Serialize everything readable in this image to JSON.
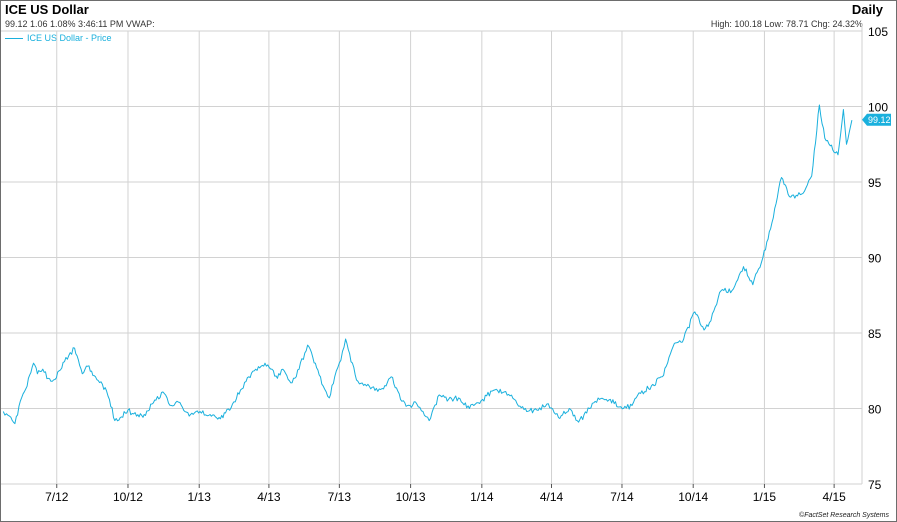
{
  "header": {
    "title": "ICE US Dollar",
    "frequency": "Daily",
    "quote_line": "99.12 1.06 1.08% 3:46:11 PM VWAP:",
    "stats_line": "High: 100.18 Low: 78.71 Chg: 24.32%",
    "legend_label": "ICE US Dollar - Price"
  },
  "footer": {
    "credit": "©FactSet Research Systems"
  },
  "chart_data": {
    "type": "line",
    "title": "ICE US Dollar",
    "xlabel": "",
    "ylabel": "",
    "x_tick_labels": [
      "7/12",
      "10/12",
      "1/13",
      "4/13",
      "7/13",
      "10/13",
      "1/14",
      "4/14",
      "7/14",
      "10/14",
      "1/15",
      "4/15"
    ],
    "y_tick_labels": [
      "75",
      "80",
      "85",
      "90",
      "95",
      "100",
      "105"
    ],
    "ylim": [
      75,
      105
    ],
    "xlim": [
      "2012-04-20",
      "2015-05-07"
    ],
    "grid": true,
    "legend_position": "top-left",
    "y_axis_side": "right",
    "last_value_label": "99.12",
    "series": [
      {
        "name": "ICE US Dollar - Price",
        "color": "#1ab0dd",
        "points": [
          [
            "2012-04-23",
            79.8
          ],
          [
            "2012-05-01",
            79.5
          ],
          [
            "2012-05-08",
            79.0
          ],
          [
            "2012-05-15",
            80.5
          ],
          [
            "2012-05-22",
            81.3
          ],
          [
            "2012-06-01",
            83.0
          ],
          [
            "2012-06-06",
            82.3
          ],
          [
            "2012-06-13",
            82.6
          ],
          [
            "2012-06-20",
            82.0
          ],
          [
            "2012-06-27",
            81.9
          ],
          [
            "2012-07-04",
            82.5
          ],
          [
            "2012-07-11",
            83.1
          ],
          [
            "2012-07-24",
            84.0
          ],
          [
            "2012-08-03",
            82.3
          ],
          [
            "2012-08-10",
            82.8
          ],
          [
            "2012-08-20",
            82.1
          ],
          [
            "2012-08-29",
            81.6
          ],
          [
            "2012-09-07",
            80.6
          ],
          [
            "2012-09-14",
            79.2
          ],
          [
            "2012-09-21",
            79.4
          ],
          [
            "2012-10-01",
            79.9
          ],
          [
            "2012-10-12",
            79.5
          ],
          [
            "2012-10-22",
            79.6
          ],
          [
            "2012-11-01",
            80.3
          ],
          [
            "2012-11-15",
            81.1
          ],
          [
            "2012-11-26",
            80.2
          ],
          [
            "2012-12-07",
            80.4
          ],
          [
            "2012-12-19",
            79.5
          ],
          [
            "2013-01-02",
            79.8
          ],
          [
            "2013-01-15",
            79.6
          ],
          [
            "2013-01-25",
            79.3
          ],
          [
            "2013-02-04",
            79.7
          ],
          [
            "2013-02-13",
            80.3
          ],
          [
            "2013-02-25",
            81.3
          ],
          [
            "2013-03-06",
            82.1
          ],
          [
            "2013-03-15",
            82.6
          ],
          [
            "2013-03-27",
            83.0
          ],
          [
            "2013-04-05",
            82.6
          ],
          [
            "2013-04-12",
            82.0
          ],
          [
            "2013-04-19",
            82.6
          ],
          [
            "2013-05-01",
            81.7
          ],
          [
            "2013-05-10",
            82.6
          ],
          [
            "2013-05-21",
            84.2
          ],
          [
            "2013-05-31",
            83.0
          ],
          [
            "2013-06-10",
            81.5
          ],
          [
            "2013-06-18",
            80.7
          ],
          [
            "2013-06-25",
            82.1
          ],
          [
            "2013-07-03",
            83.2
          ],
          [
            "2013-07-09",
            84.6
          ],
          [
            "2013-07-16",
            83.1
          ],
          [
            "2013-07-25",
            81.8
          ],
          [
            "2013-08-05",
            81.5
          ],
          [
            "2013-08-16",
            81.2
          ],
          [
            "2013-08-27",
            81.3
          ],
          [
            "2013-09-06",
            82.1
          ],
          [
            "2013-09-18",
            80.6
          ],
          [
            "2013-09-27",
            80.2
          ],
          [
            "2013-10-09",
            80.3
          ],
          [
            "2013-10-17",
            79.8
          ],
          [
            "2013-10-25",
            79.2
          ],
          [
            "2013-11-07",
            80.9
          ],
          [
            "2013-11-19",
            80.6
          ],
          [
            "2013-12-02",
            80.7
          ],
          [
            "2013-12-16",
            80.0
          ],
          [
            "2014-01-02",
            80.6
          ],
          [
            "2014-01-16",
            81.2
          ],
          [
            "2014-01-30",
            81.1
          ],
          [
            "2014-02-12",
            80.6
          ],
          [
            "2014-02-28",
            79.8
          ],
          [
            "2014-03-13",
            79.9
          ],
          [
            "2014-03-26",
            80.3
          ],
          [
            "2014-04-10",
            79.4
          ],
          [
            "2014-04-24",
            80.0
          ],
          [
            "2014-05-06",
            79.1
          ],
          [
            "2014-05-20",
            80.0
          ],
          [
            "2014-06-02",
            80.6
          ],
          [
            "2014-06-16",
            80.6
          ],
          [
            "2014-06-26",
            80.1
          ],
          [
            "2014-07-03",
            80.0
          ],
          [
            "2014-07-14",
            80.2
          ],
          [
            "2014-07-25",
            81.0
          ],
          [
            "2014-08-08",
            81.5
          ],
          [
            "2014-08-22",
            82.1
          ],
          [
            "2014-09-05",
            84.1
          ],
          [
            "2014-09-17",
            84.4
          ],
          [
            "2014-10-03",
            86.4
          ],
          [
            "2014-10-15",
            85.2
          ],
          [
            "2014-10-22",
            85.7
          ],
          [
            "2014-11-06",
            87.8
          ],
          [
            "2014-11-20",
            87.8
          ],
          [
            "2014-12-05",
            89.4
          ],
          [
            "2014-12-17",
            88.2
          ],
          [
            "2014-12-30",
            90.0
          ],
          [
            "2015-01-09",
            91.9
          ],
          [
            "2015-01-23",
            95.3
          ],
          [
            "2015-02-04",
            94.0
          ],
          [
            "2015-02-18",
            94.2
          ],
          [
            "2015-03-03",
            95.4
          ],
          [
            "2015-03-13",
            100.1
          ],
          [
            "2015-03-20",
            97.9
          ],
          [
            "2015-03-27",
            97.4
          ],
          [
            "2015-04-06",
            96.8
          ],
          [
            "2015-04-13",
            99.8
          ],
          [
            "2015-04-17",
            97.5
          ],
          [
            "2015-04-24",
            99.1
          ]
        ]
      }
    ]
  }
}
